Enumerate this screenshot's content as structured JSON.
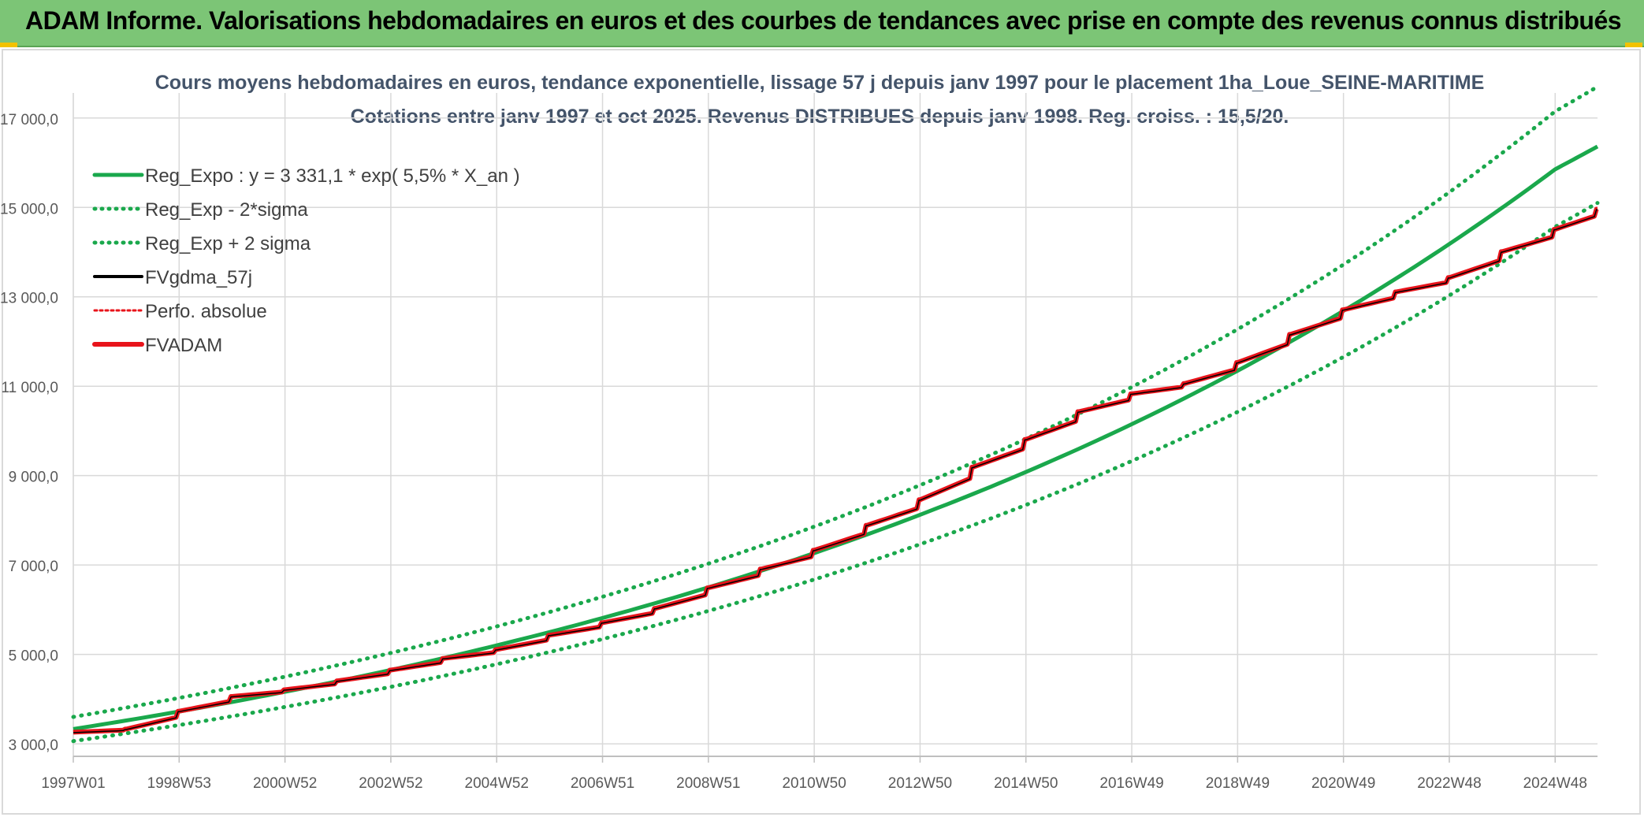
{
  "banner": {
    "title": "ADAM Informe. Valorisations hebdomadaires en euros et des courbes de tendances avec prise en compte des revenus connus distribués"
  },
  "colors": {
    "banner_bg": "#7cc576",
    "reg": "#1aa84c",
    "fv": "#000000",
    "adam": "#e8141b",
    "perf": "#e8141b",
    "grid": "#d9d9d9"
  },
  "chart_data": {
    "type": "line",
    "title": "Cours moyens hebdomadaires en euros, tendance exponentielle, lissage 57 j depuis janv 1997 pour le placement 1ha_Loue_SEINE-MARITIME",
    "subtitle": "Cotations entre janv 1997 et oct 2025. Revenus DISTRIBUES depuis janv 1998. Reg. croiss. : 15,5/20.",
    "xlabel": "",
    "ylabel": "",
    "x_range": [
      1997.0,
      2025.8
    ],
    "ylim": [
      3000,
      17000
    ],
    "y_ticks": [
      3000,
      5000,
      7000,
      9000,
      11000,
      13000,
      15000,
      17000
    ],
    "y_tick_labels": [
      "3 000,0",
      "5 000,0",
      "7 000,0",
      "9 000,0",
      "11 000,0",
      "13 000,0",
      "15 000,0",
      "17 000,0"
    ],
    "x_ticks": [
      1997.0,
      1999.0,
      2001.0,
      2003.0,
      2005.0,
      2007.0,
      2009.0,
      2011.0,
      2013.0,
      2015.0,
      2017.0,
      2019.0,
      2021.0,
      2023.0,
      2025.0
    ],
    "x_tick_labels": [
      "1997W01",
      "1998W53",
      "2000W52",
      "2002W52",
      "2004W52",
      "2006W51",
      "2008W51",
      "2010W50",
      "2012W50",
      "2014W50",
      "2016W49",
      "2018W49",
      "2020W49",
      "2022W48",
      "2024W48"
    ],
    "grid": true,
    "legend_position": "top-left",
    "series": [
      {
        "name": "Reg_Expo : y = 3 331,1 * exp( 5,5% *  X_an )",
        "style": "solid",
        "color": "#1aa84c",
        "x": [
          1997.0,
          1999.0,
          2001.0,
          2003.0,
          2005.0,
          2007.0,
          2009.0,
          2011.0,
          2013.0,
          2015.0,
          2017.0,
          2019.0,
          2021.0,
          2023.0,
          2025.0,
          2025.8
        ],
        "values": [
          3331,
          3723,
          4163,
          4653,
          5202,
          5815,
          6500,
          7266,
          8124,
          9081,
          10151,
          11348,
          12686,
          14181,
          15853,
          16363
        ]
      },
      {
        "name": "Reg_Exp - 2*sigma",
        "style": "dotted",
        "color": "#1aa84c",
        "x": [
          1997.0,
          1999.0,
          2001.0,
          2003.0,
          2005.0,
          2007.0,
          2009.0,
          2011.0,
          2013.0,
          2015.0,
          2017.0,
          2019.0,
          2021.0,
          2023.0,
          2025.0,
          2025.8
        ],
        "values": [
          3060,
          3420,
          3825,
          4275,
          4780,
          5343,
          5973,
          6677,
          7464,
          8344,
          9327,
          10426,
          11656,
          13030,
          14566,
          15100
        ]
      },
      {
        "name": "Reg_Exp + 2 sigma",
        "style": "dotted",
        "color": "#1aa84c",
        "x": [
          1997.0,
          1999.0,
          2001.0,
          2003.0,
          2005.0,
          2007.0,
          2009.0,
          2011.0,
          2013.0,
          2015.0,
          2017.0,
          2019.0,
          2021.0,
          2023.0,
          2025.0,
          2025.8
        ],
        "values": [
          3602,
          4027,
          4502,
          5033,
          5627,
          6290,
          7031,
          7859,
          8786,
          9822,
          10980,
          12275,
          13722,
          15340,
          17149,
          17700
        ]
      },
      {
        "name": "FVgdma_57j",
        "style": "solid",
        "color": "#000000",
        "x": [
          1997.0,
          1998.0,
          1999.0,
          2000.0,
          2001.0,
          2002.0,
          2003.0,
          2004.0,
          2005.0,
          2006.0,
          2007.0,
          2008.0,
          2009.0,
          2010.0,
          2011.0,
          2012.0,
          2013.0,
          2014.0,
          2015.0,
          2016.0,
          2017.0,
          2018.0,
          2019.0,
          2020.0,
          2021.0,
          2022.0,
          2023.0,
          2024.0,
          2025.0,
          2025.8
        ],
        "values": [
          3250,
          3320,
          3720,
          4050,
          4200,
          4400,
          4640,
          4900,
          5100,
          5420,
          5700,
          6020,
          6480,
          6900,
          7320,
          7880,
          8450,
          9180,
          9800,
          10420,
          10820,
          11050,
          11520,
          12150,
          12700,
          13100,
          13420,
          14000,
          14500,
          14950
        ]
      },
      {
        "name": "Perfo. absolue",
        "style": "dotted",
        "color": "#e8141b",
        "x": [],
        "values": []
      },
      {
        "name": "FVADAM",
        "style": "solid",
        "color": "#e8141b",
        "x": [
          1997.0,
          1998.0,
          1999.0,
          2000.0,
          2001.0,
          2002.0,
          2003.0,
          2004.0,
          2005.0,
          2006.0,
          2007.0,
          2008.0,
          2009.0,
          2010.0,
          2011.0,
          2012.0,
          2013.0,
          2014.0,
          2015.0,
          2016.0,
          2017.0,
          2018.0,
          2019.0,
          2020.0,
          2021.0,
          2022.0,
          2023.0,
          2024.0,
          2025.0,
          2025.8
        ],
        "values": [
          3260,
          3330,
          3730,
          4060,
          4210,
          4410,
          4650,
          4910,
          5110,
          5430,
          5710,
          6030,
          6490,
          6910,
          7330,
          7890,
          8460,
          9190,
          9810,
          10430,
          10830,
          11060,
          11530,
          12160,
          12710,
          13110,
          13430,
          14010,
          14510,
          14960
        ]
      }
    ]
  }
}
